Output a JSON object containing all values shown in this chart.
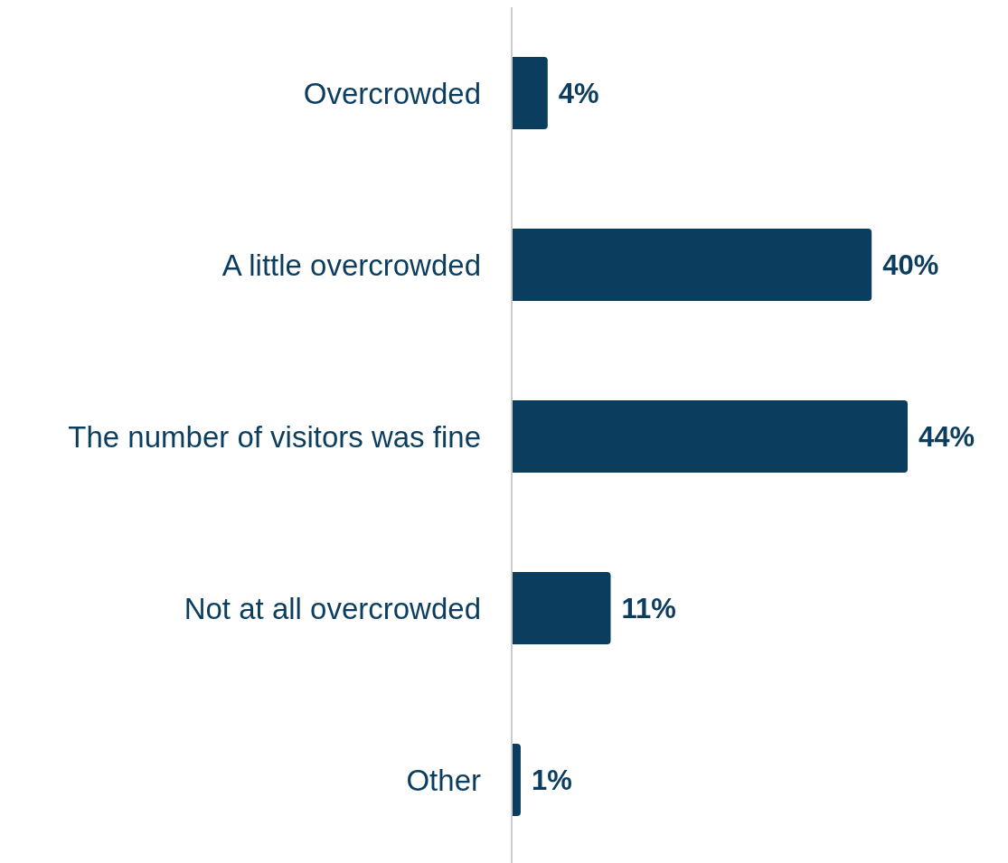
{
  "chart_data": {
    "type": "bar",
    "orientation": "horizontal",
    "categories": [
      "Overcrowded",
      "A little overcrowded",
      "The number of visitors was fine",
      "Not at all overcrowded",
      "Other"
    ],
    "values": [
      4,
      40,
      44,
      11,
      1
    ],
    "value_labels": [
      "4%",
      "40%",
      "44%",
      "11%",
      "1%"
    ],
    "color": "#0b3d5e"
  }
}
